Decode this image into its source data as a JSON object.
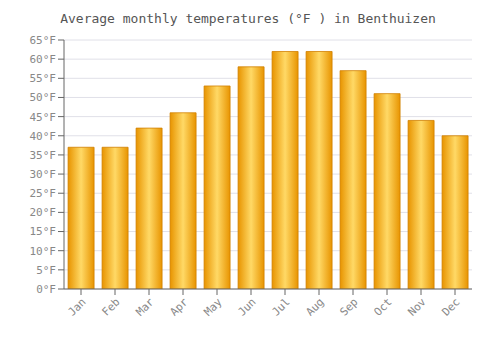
{
  "chart_data": {
    "type": "bar",
    "title": "Average monthly temperatures (°F ) in Benthuizen",
    "categories": [
      "Jan",
      "Feb",
      "Mar",
      "Apr",
      "May",
      "Jun",
      "Jul",
      "Aug",
      "Sep",
      "Oct",
      "Nov",
      "Dec"
    ],
    "values": [
      37,
      37,
      42,
      46,
      53,
      58,
      62,
      62,
      57,
      51,
      44,
      40
    ],
    "color": "#E89400",
    "ylim": [
      0,
      65
    ],
    "yticks": [
      {
        "value": 0,
        "label": "0°F"
      },
      {
        "value": 5,
        "label": "5°F"
      },
      {
        "value": 10,
        "label": "10°F"
      },
      {
        "value": 15,
        "label": "15°F"
      },
      {
        "value": 20,
        "label": "20°F"
      },
      {
        "value": 25,
        "label": "25°F"
      },
      {
        "value": 30,
        "label": "30°F"
      },
      {
        "value": 35,
        "label": "35°F"
      },
      {
        "value": 40,
        "label": "40°F"
      },
      {
        "value": 45,
        "label": "45°F"
      },
      {
        "value": 50,
        "label": "50°F"
      },
      {
        "value": 55,
        "label": "55°F"
      },
      {
        "value": 60,
        "label": "60°F"
      },
      {
        "value": 65,
        "label": "65°F"
      }
    ],
    "grid": true
  }
}
